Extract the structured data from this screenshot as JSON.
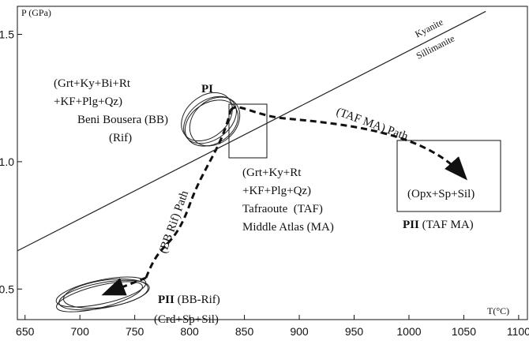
{
  "chart_data": {
    "type": "line",
    "x_label": "T(°C)",
    "y_label": "P (GPa)",
    "xlim": [
      643,
      1108
    ],
    "ylim": [
      0.38,
      1.61
    ],
    "xticks": [
      650,
      700,
      750,
      800,
      850,
      900,
      950,
      1000,
      1050,
      1100
    ],
    "yticks": [
      0.5,
      {
        "value": 1,
        "label": "1.0"
      },
      1.5
    ],
    "x": [
      643,
      1070
    ],
    "series": [
      {
        "values": [
          0.65,
          1.59
        ],
        "color": "#222222",
        "labels": [
          "Kyanite",
          "Sillimanite"
        ]
      }
    ],
    "annotations": {
      "pi": "PI",
      "pi_assemblage_1": "(Grt+Ky+Bi+Rt",
      "pi_assemblage_2": "+KF+Plg+Qz)",
      "pi_locality_1": "Beni Bousera (BB)",
      "pi_locality_2": "(Rif)",
      "taf_assemblage_1": "(Grt+Ky+Rt",
      "taf_assemblage_2": "+KF+Plg+Qz)",
      "taf_locality_1": "Tafraoute  (TAF)",
      "taf_locality_2": "Middle Atlas (MA)",
      "taf_path": "(TAF MA) Path",
      "bb_path": "(BB Rif) Path",
      "pii_taf_bold": "PII",
      "pii_taf_rest": "(TAF MA)",
      "pii_taf_assemblage": "(Opx+Sp+Sil)",
      "pii_bb_bold": "PII",
      "pii_bb_rest": "(BB-Rif)",
      "pii_bb_assemblage": "(Crd+Sp+Sil)"
    }
  }
}
